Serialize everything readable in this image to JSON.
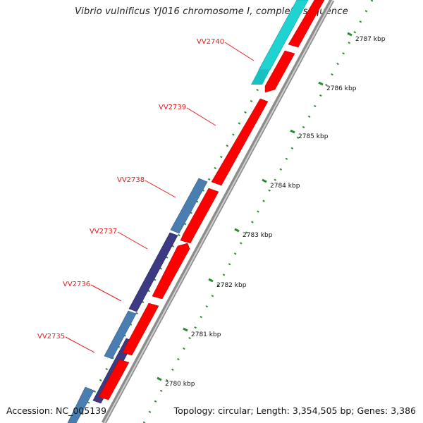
{
  "title": "Vibrio vulnificus YJ016 chromosome I, complete sequence",
  "footer": {
    "accession": "Accession: NC_005139",
    "stats": "Topology: circular; Length: 3,354,505 bp; Genes: 3,386"
  },
  "colors": {
    "cds_forward": "#ff0000",
    "gene_cyan": "#1fd3d3",
    "gene_steel": "#4a7eb0",
    "gene_indigo": "#3c3a82",
    "gc_skew_dots": "#2e8b2e",
    "label": "#e41a1c",
    "backbone": "#9a9a9a"
  },
  "kbp_ticks": [
    {
      "label": "2780 kbp"
    },
    {
      "label": "2781 kbp"
    },
    {
      "label": "2782 kbp"
    },
    {
      "label": "2783 kbp"
    },
    {
      "label": "2784 kbp"
    },
    {
      "label": "2785 kbp"
    },
    {
      "label": "2786 kbp"
    },
    {
      "label": "2787 kbp"
    }
  ],
  "gene_labels": [
    {
      "name": "VV2735"
    },
    {
      "name": "VV2736"
    },
    {
      "name": "VV2737"
    },
    {
      "name": "VV2738"
    },
    {
      "name": "VV2739"
    },
    {
      "name": "VV2740"
    }
  ]
}
